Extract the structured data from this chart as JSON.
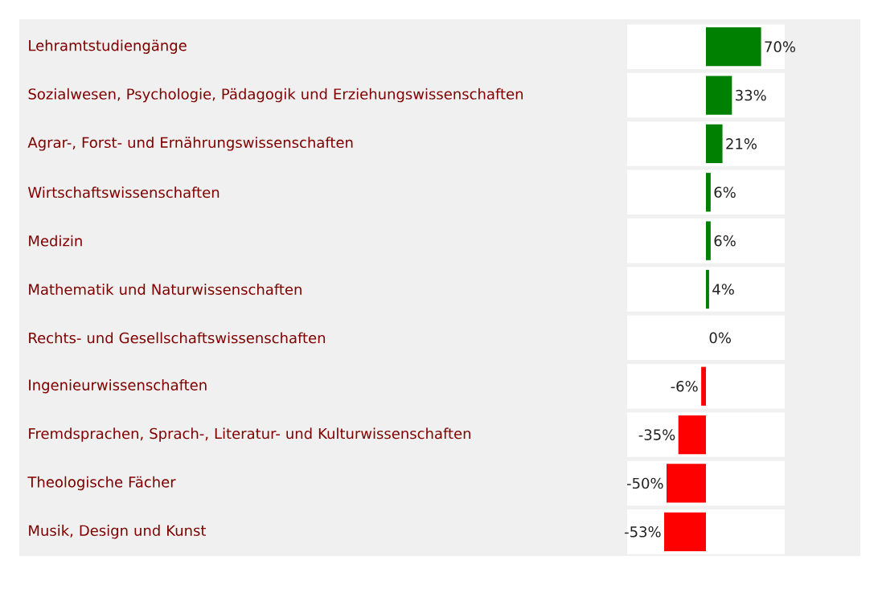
{
  "chart_data": {
    "type": "bar",
    "orientation": "horizontal",
    "categories": [
      "Lehramtstudiengänge",
      "Sozialwesen, Psychologie, Pädagogik und Erziehungswissenschaften",
      "Agrar-, Forst- und Ernährungswissenschaften",
      "Wirtschaftswissenschaften",
      "Medizin",
      "Mathematik und Naturwissenschaften",
      "Rechts- und Gesellschaftswissenschaften",
      "Ingenieurwissenschaften",
      "Fremdsprachen, Sprach-, Literatur- und Kulturwissenschaften",
      "Theologische Fächer",
      "Musik, Design und Kunst"
    ],
    "values": [
      70,
      33,
      21,
      6,
      6,
      4,
      0,
      -6,
      -35,
      -50,
      -53
    ],
    "value_labels": [
      "70%",
      "33%",
      "21%",
      "6%",
      "6%",
      "4%",
      "0%",
      "-6%",
      "-35%",
      "-50%",
      "-53%"
    ],
    "colors": [
      "#008000",
      "#008000",
      "#008000",
      "#008000",
      "#008000",
      "#008000",
      "#008000",
      "#ff0000",
      "#ff0000",
      "#ff0000",
      "#ff0000"
    ],
    "xlim": [
      -100,
      100
    ],
    "tick_labels": "y"
  }
}
